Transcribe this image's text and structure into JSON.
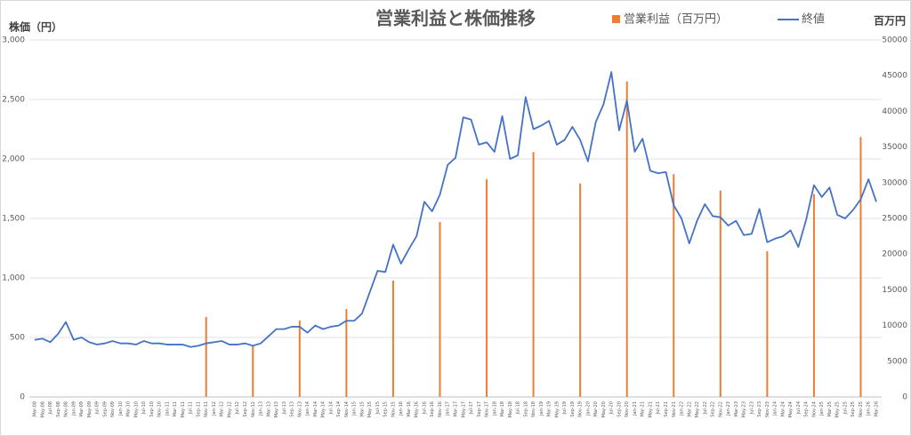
{
  "chart_data": {
    "type": "combo",
    "title": "営業利益と株価推移",
    "y_label": "株価（円）",
    "y2_label": "百万円",
    "categories": [
      "Mar-08",
      "May-08",
      "Jul-08",
      "Sep-08",
      "Nov-08",
      "Jan-09",
      "Mar-09",
      "May-09",
      "Jul-09",
      "Sep-09",
      "Nov-09",
      "Jan-10",
      "Mar-10",
      "May-10",
      "Jul-10",
      "Sep-10",
      "Nov-10",
      "Jan-11",
      "Mar-11",
      "May-11",
      "Jul-11",
      "Sep-11",
      "Nov-11",
      "Jan-12",
      "Mar-12",
      "May-12",
      "Jul-12",
      "Sep-12",
      "Nov-12",
      "Jan-13",
      "Mar-13",
      "May-13",
      "Jul-13",
      "Sep-13",
      "Nov-13",
      "Jan-14",
      "Mar-14",
      "May-14",
      "Jul-14",
      "Sep-14",
      "Nov-14",
      "Jan-15",
      "Mar-15",
      "May-15",
      "Jul-15",
      "Sep-15",
      "Nov-15",
      "Jan-16",
      "Mar-16",
      "May-16",
      "Jul-16",
      "Sep-16",
      "Nov-16",
      "Jan-17",
      "Mar-17",
      "May-17",
      "Jul-17",
      "Sep-17",
      "Nov-17",
      "Jan-18",
      "Mar-18",
      "May-18",
      "Jul-18",
      "Sep-18",
      "Nov-18",
      "Jan-19",
      "Mar-19",
      "May-19",
      "Jul-19",
      "Sep-19",
      "Nov-19",
      "Jan-20",
      "Mar-20",
      "May-20",
      "Jul-20",
      "Sep-20",
      "Nov-20",
      "Jan-21",
      "Mar-21",
      "May-21",
      "Jul-21",
      "Sep-21",
      "Nov-21",
      "Jan-22",
      "Mar-22",
      "May-22",
      "Jul-22",
      "Sep-22",
      "Nov-22",
      "Jan-23",
      "Mar-23",
      "May-23",
      "Jul-23",
      "Sep-23",
      "Nov-23",
      "Jan-24",
      "Mar-24",
      "May-24",
      "Jul-24",
      "Sep-24",
      "Nov-24",
      "Jan-25",
      "Mar-25",
      "May-25",
      "Jul-25",
      "Sep-25",
      "Nov-25",
      "Jan-26",
      "Mar-26"
    ],
    "series": [
      {
        "name": "営業利益（百万円）",
        "type": "bar",
        "axis": "y2",
        "color": "#ed7d31",
        "values": [
          null,
          null,
          null,
          null,
          null,
          null,
          null,
          null,
          null,
          null,
          null,
          null,
          null,
          null,
          null,
          null,
          null,
          null,
          null,
          null,
          null,
          null,
          11200,
          null,
          null,
          null,
          null,
          null,
          7100,
          null,
          null,
          null,
          null,
          null,
          10700,
          null,
          null,
          null,
          null,
          null,
          12300,
          null,
          null,
          null,
          null,
          null,
          16300,
          null,
          null,
          null,
          null,
          null,
          24500,
          null,
          null,
          null,
          null,
          null,
          30500,
          null,
          null,
          null,
          null,
          null,
          34300,
          null,
          null,
          null,
          null,
          null,
          29900,
          null,
          null,
          null,
          null,
          null,
          44200,
          null,
          null,
          null,
          null,
          null,
          31200,
          null,
          null,
          null,
          null,
          null,
          28900,
          null,
          null,
          null,
          null,
          null,
          20400,
          null,
          null,
          null,
          null,
          null,
          28400,
          null,
          null,
          null,
          null,
          null,
          36400,
          null,
          null
        ]
      },
      {
        "name": "終値",
        "type": "line",
        "color": "#4472c4",
        "values": [
          480,
          490,
          460,
          530,
          630,
          480,
          500,
          460,
          440,
          450,
          470,
          450,
          450,
          440,
          470,
          450,
          450,
          440,
          440,
          440,
          420,
          430,
          450,
          460,
          470,
          440,
          440,
          450,
          430,
          450,
          510,
          570,
          570,
          590,
          590,
          540,
          600,
          570,
          590,
          600,
          640,
          640,
          700,
          880,
          1060,
          1050,
          1280,
          1120,
          1240,
          1350,
          1640,
          1560,
          1700,
          1950,
          2010,
          2350,
          2330,
          2120,
          2140,
          2060,
          2360,
          2000,
          2030,
          2520,
          2250,
          2280,
          2320,
          2120,
          2160,
          2270,
          2160,
          1980,
          2310,
          2460,
          2730,
          2240,
          2490,
          2060,
          2170,
          1900,
          1880,
          1890,
          1610,
          1500,
          1290,
          1480,
          1620,
          1520,
          1510,
          1440,
          1480,
          1360,
          1370,
          1580,
          1300,
          1330,
          1350,
          1400,
          1260,
          1490,
          1780,
          1680,
          1760,
          1530,
          1500,
          1570,
          1660,
          1830,
          1640
        ]
      }
    ],
    "ylim": [
      0,
      3000
    ],
    "yticks": [
      0,
      500,
      {
        "value": 1000,
        "label": "1,000"
      },
      {
        "value": 1500,
        "label": "1,500"
      },
      {
        "value": 2000,
        "label": "2,000"
      },
      {
        "value": 2500,
        "label": "2,500"
      },
      {
        "value": 3000,
        "label": "3,000"
      }
    ],
    "y2lim": [
      0,
      50000
    ],
    "y2ticks": [
      0,
      5000,
      10000,
      15000,
      20000,
      25000,
      30000,
      35000,
      40000,
      45000,
      50000
    ],
    "grid": true
  }
}
